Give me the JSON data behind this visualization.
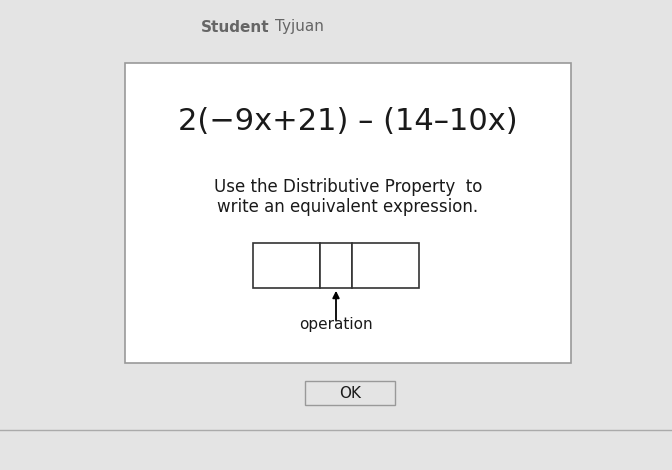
{
  "background_color": "#e4e4e4",
  "card_bg": "#ffffff",
  "title_text": "2(−9x+21) – (14–10x)",
  "title_fontsize": 22,
  "instruction_line1": "Use the Distributive Property  to",
  "instruction_line2": "write an equivalent expression.",
  "instruction_fontsize": 12,
  "header_bold": "Student",
  "header_value": "Tyjuan",
  "header_fontsize": 11,
  "header_color": "#666666",
  "operation_label": "operation",
  "operation_fontsize": 11,
  "ok_label": "OK",
  "ok_fontsize": 11,
  "box_color": "#333333",
  "text_color": "#1a1a1a",
  "card_border_color": "#999999",
  "ok_border_color": "#999999"
}
